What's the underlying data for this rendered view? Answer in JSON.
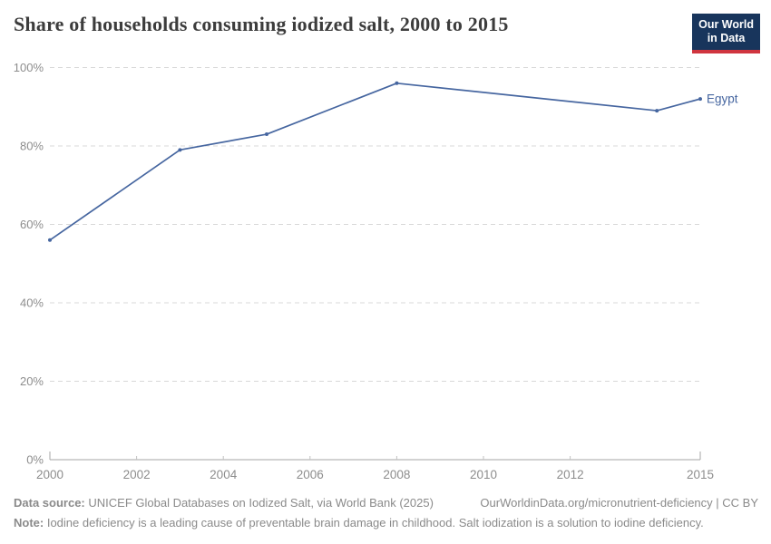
{
  "header": {
    "title": "Share of households consuming iodized salt, 2000 to 2015",
    "logo": {
      "line1": "Our World",
      "line2": "in Data"
    }
  },
  "chart_data": {
    "type": "line",
    "title": "Share of households consuming iodized salt, 2000 to 2015",
    "series": [
      {
        "name": "Egypt",
        "color": "#4666a0",
        "x": [
          2000,
          2003,
          2005,
          2008,
          2014,
          2015
        ],
        "values": [
          56,
          79,
          83,
          96,
          89,
          92
        ]
      }
    ],
    "end_label": "Egypt",
    "xlim": [
      2000,
      2015
    ],
    "ylim": [
      0,
      100
    ],
    "x_ticks": [
      {
        "v": 2000,
        "label": "2000"
      },
      {
        "v": 2002,
        "label": "2002"
      },
      {
        "v": 2004,
        "label": "2004"
      },
      {
        "v": 2006,
        "label": "2006"
      },
      {
        "v": 2008,
        "label": "2008"
      },
      {
        "v": 2010,
        "label": "2010"
      },
      {
        "v": 2012,
        "label": "2012"
      },
      {
        "v": 2015,
        "label": "2015"
      }
    ],
    "y_ticks": [
      {
        "v": 0,
        "label": "0%"
      },
      {
        "v": 20,
        "label": "20%"
      },
      {
        "v": 40,
        "label": "40%"
      },
      {
        "v": 60,
        "label": "60%"
      },
      {
        "v": 80,
        "label": "80%"
      },
      {
        "v": 100,
        "label": "100%"
      }
    ],
    "grid": "horizontal-dashed",
    "legend_position": "end-of-line"
  },
  "footer": {
    "data_source_label": "Data source:",
    "data_source_text": "UNICEF Global Databases on Iodized Salt, via World Bank (2025)",
    "link_text": "OurWorldinData.org/micronutrient-deficiency | CC BY",
    "note_label": "Note:",
    "note_text": "Iodine deficiency is a leading cause of preventable brain damage in childhood. Salt iodization is a solution to iodine deficiency."
  },
  "colors": {
    "line_egypt": "#4666a0",
    "logo_background": "#18355c",
    "logo_accent": "#d0353f",
    "gridline": "#d8d8d8",
    "axis": "#a6a6a6",
    "inner_tick": "#c2c2c2",
    "tick_label": "#8d8d8d",
    "title_text": "#3c3c3c",
    "footer_text": "#8a8a8a"
  }
}
